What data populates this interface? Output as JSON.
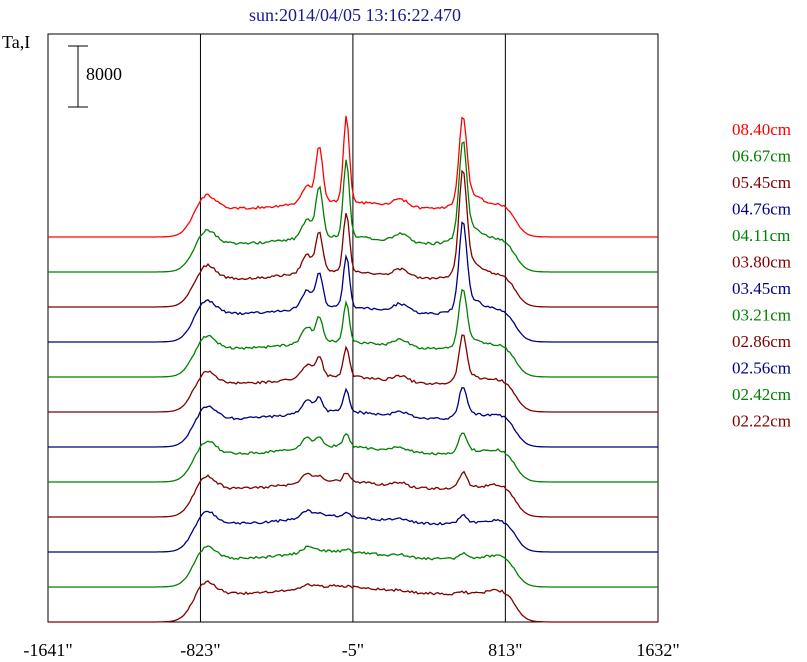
{
  "chart_data": {
    "type": "line",
    "title": "sun:2014/04/05 13:16:22.470",
    "ylabel": "Ta,I",
    "scale_bar_label": "8000",
    "x_ticks": [
      "-1641\"",
      "-823\"",
      "-5\"",
      "813\"",
      "1632\""
    ],
    "x_tick_values": [
      -1641,
      -823,
      -5,
      813,
      1632
    ],
    "vertical_lines_x": [
      -823,
      -5,
      813
    ],
    "xlim": [
      -1641,
      1632
    ],
    "series_offset": 8000,
    "series": [
      {
        "name": "08.40cm",
        "color": "#ff0000",
        "peak_left": 1.0,
        "peak_center": 0.75,
        "peak_right": 0.85,
        "edge": 0.45
      },
      {
        "name": "06.67cm",
        "color": "#008000",
        "peak_left": 0.9,
        "peak_center": 0.8,
        "peak_right": 0.95,
        "edge": 0.45
      },
      {
        "name": "05.45cm",
        "color": "#800000",
        "peak_left": 0.7,
        "peak_center": 0.8,
        "peak_right": 1.0,
        "edge": 0.45
      },
      {
        "name": "04.76cm",
        "color": "#000080",
        "peak_left": 0.6,
        "peak_center": 0.8,
        "peak_right": 0.85,
        "edge": 0.45
      },
      {
        "name": "04.11cm",
        "color": "#008000",
        "peak_left": 0.45,
        "peak_center": 0.7,
        "peak_right": 0.55,
        "edge": 0.4
      },
      {
        "name": "03.80cm",
        "color": "#800000",
        "peak_left": 0.35,
        "peak_center": 0.6,
        "peak_right": 0.45,
        "edge": 0.4
      },
      {
        "name": "03.45cm",
        "color": "#000080",
        "peak_left": 0.25,
        "peak_center": 0.55,
        "peak_right": 0.3,
        "edge": 0.4
      },
      {
        "name": "03.21cm",
        "color": "#008000",
        "peak_left": 0.15,
        "peak_center": 0.45,
        "peak_right": 0.2,
        "edge": 0.4
      },
      {
        "name": "02.86cm",
        "color": "#800000",
        "peak_left": 0.1,
        "peak_center": 0.4,
        "peak_right": 0.15,
        "edge": 0.4
      },
      {
        "name": "02.56cm",
        "color": "#000080",
        "peak_left": 0.05,
        "peak_center": 0.35,
        "peak_right": 0.08,
        "edge": 0.38
      },
      {
        "name": "02.42cm",
        "color": "#008000",
        "peak_left": 0.02,
        "peak_center": 0.25,
        "peak_right": 0.05,
        "edge": 0.38
      },
      {
        "name": "02.22cm",
        "color": "#800000",
        "peak_left": 0.0,
        "peak_center": 0.15,
        "peak_right": 0.02,
        "edge": 0.38
      }
    ]
  }
}
